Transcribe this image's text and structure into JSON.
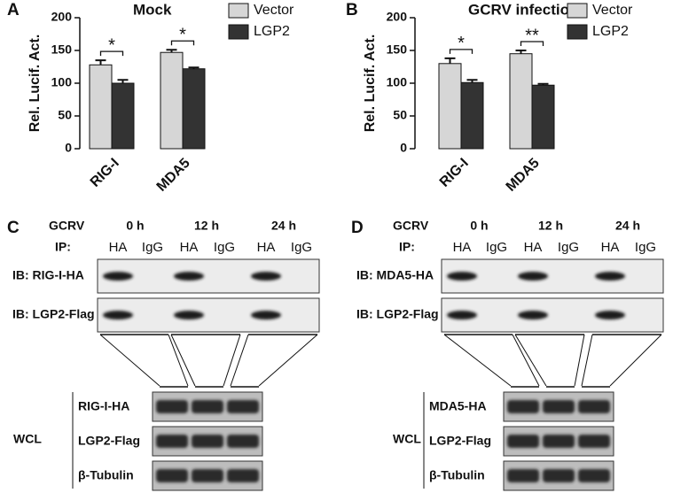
{
  "chart_data": [
    {
      "type": "bar",
      "panel": "A",
      "title": "Mock",
      "y_label": "Rel. Lucif. Act.",
      "categories": [
        "RIG-I",
        "MDA5"
      ],
      "series": [
        {
          "name": "Vector",
          "color": "#d6d6d6",
          "values": [
            128,
            147
          ],
          "errors": [
            7,
            4
          ]
        },
        {
          "name": "LGP2",
          "color": "#333333",
          "values": [
            100,
            122
          ],
          "errors": [
            5,
            2
          ]
        }
      ],
      "annotations": [
        "*",
        "*"
      ],
      "ylim": [
        0,
        200
      ],
      "yticks": [
        0,
        50,
        100,
        150,
        200
      ],
      "grid": false,
      "legend": "right"
    },
    {
      "type": "bar",
      "panel": "B",
      "title": "GCRV infection",
      "y_label": "Rel. Lucif. Act.",
      "categories": [
        "RIG-I",
        "MDA5"
      ],
      "series": [
        {
          "name": "Vector",
          "color": "#d6d6d6",
          "values": [
            130,
            145
          ],
          "errors": [
            8,
            5
          ]
        },
        {
          "name": "LGP2",
          "color": "#333333",
          "values": [
            101,
            97
          ],
          "errors": [
            4,
            2
          ]
        }
      ],
      "annotations": [
        "*",
        "**"
      ],
      "ylim": [
        0,
        200
      ],
      "yticks": [
        0,
        50,
        100,
        150,
        200
      ],
      "grid": false,
      "legend": "right"
    }
  ],
  "blots": [
    {
      "panel": "C",
      "treatment": "GCRV",
      "timepoints": [
        "0 h",
        "12 h",
        "24 h"
      ],
      "ip_label": "IP:",
      "ip_lanes": [
        "HA",
        "IgG",
        "HA",
        "IgG",
        "HA",
        "IgG"
      ],
      "ib_rows": [
        "IB: RIG-I-HA",
        "IB: LGP2-Flag"
      ],
      "wcl_label": "WCL",
      "wcl_rows": [
        "RIG-I-HA",
        "LGP2-Flag",
        "β-Tubulin"
      ]
    },
    {
      "panel": "D",
      "treatment": "GCRV",
      "timepoints": [
        "0 h",
        "12 h",
        "24 h"
      ],
      "ip_label": "IP:",
      "ip_lanes": [
        "HA",
        "IgG",
        "HA",
        "IgG",
        "HA",
        "IgG"
      ],
      "ib_rows": [
        "IB: MDA5-HA",
        "IB: LGP2-Flag"
      ],
      "wcl_label": "WCL",
      "wcl_rows": [
        "MDA5-HA",
        "LGP2-Flag",
        "β-Tubulin"
      ]
    }
  ]
}
